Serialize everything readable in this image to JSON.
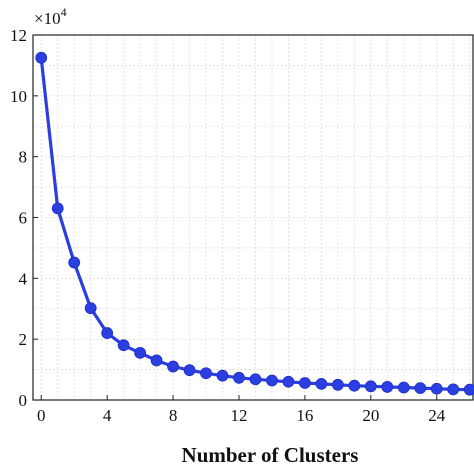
{
  "chart_data": {
    "type": "line",
    "title": "",
    "xlabel": "Number of Clusters",
    "ylabel": "",
    "y_scale_label": {
      "base": "×10",
      "exponent": "4"
    },
    "xlim": [
      -0.5,
      26.2
    ],
    "ylim": [
      0,
      12
    ],
    "x_ticks": [
      "0",
      "4",
      "8",
      "12",
      "16",
      "20",
      "24"
    ],
    "y_ticks": [
      "0",
      "2",
      "4",
      "6",
      "8",
      "10",
      "12"
    ],
    "grid": true,
    "marker": "circle",
    "series_color": "#2b3ee0",
    "x": [
      0,
      1,
      2,
      3,
      4,
      5,
      6,
      7,
      8,
      9,
      10,
      11,
      12,
      13,
      14,
      15,
      16,
      17,
      18,
      19,
      20,
      21,
      22,
      23,
      24,
      25,
      26
    ],
    "series": [
      {
        "values": [
          11.25,
          6.3,
          4.52,
          3.02,
          2.2,
          1.8,
          1.55,
          1.3,
          1.1,
          0.98,
          0.88,
          0.8,
          0.73,
          0.68,
          0.64,
          0.6,
          0.56,
          0.53,
          0.5,
          0.47,
          0.45,
          0.43,
          0.41,
          0.39,
          0.37,
          0.35,
          0.34
        ]
      }
    ]
  }
}
